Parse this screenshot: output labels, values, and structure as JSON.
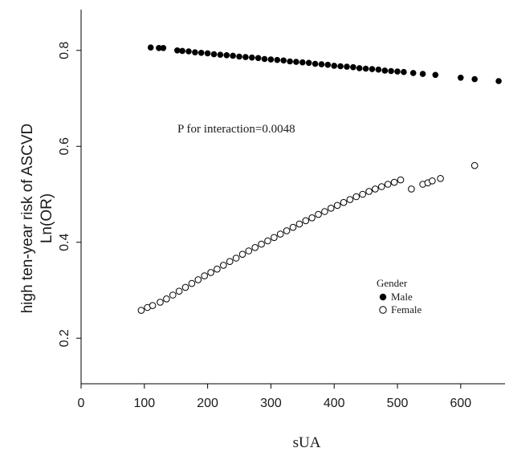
{
  "chart_data": {
    "type": "scatter",
    "xlabel": "sUA",
    "ylabel_lines": [
      "high ten-year risk of ASCVD",
      "Ln(OR)"
    ],
    "xlim": [
      0,
      670
    ],
    "ylim": [
      0.105,
      0.885
    ],
    "x_ticks": [
      0,
      100,
      200,
      300,
      400,
      500,
      600
    ],
    "y_ticks": [
      0.2,
      0.4,
      0.6,
      0.8
    ],
    "x_tick_labels": [
      "0",
      "100",
      "200",
      "300",
      "400",
      "500",
      "600"
    ],
    "y_tick_labels": [
      "0.2",
      "0.4",
      "0.6",
      "0.8"
    ],
    "annotation": "P for interaction=0.0048",
    "legend": {
      "title": "Gender",
      "position": "inside-right"
    },
    "series": [
      {
        "name": "Male",
        "marker": "filled-circle",
        "color": "#000000",
        "x": [
          110,
          123,
          130,
          152,
          160,
          170,
          180,
          190,
          200,
          210,
          220,
          230,
          240,
          250,
          260,
          270,
          280,
          290,
          300,
          310,
          320,
          330,
          340,
          350,
          360,
          370,
          380,
          390,
          400,
          410,
          420,
          430,
          440,
          450,
          460,
          470,
          480,
          490,
          500,
          510,
          525,
          540,
          560,
          600,
          622,
          660
        ],
        "y": [
          0.806,
          0.805,
          0.805,
          0.8,
          0.799,
          0.798,
          0.796,
          0.795,
          0.794,
          0.792,
          0.791,
          0.79,
          0.789,
          0.787,
          0.786,
          0.785,
          0.784,
          0.782,
          0.781,
          0.78,
          0.779,
          0.777,
          0.776,
          0.775,
          0.774,
          0.772,
          0.771,
          0.77,
          0.768,
          0.767,
          0.766,
          0.765,
          0.763,
          0.762,
          0.761,
          0.76,
          0.758,
          0.757,
          0.756,
          0.755,
          0.753,
          0.751,
          0.749,
          0.743,
          0.74,
          0.736
        ]
      },
      {
        "name": "Female",
        "marker": "open-circle",
        "color": "#000000",
        "x": [
          95,
          105,
          113,
          125,
          135,
          145,
          155,
          165,
          175,
          185,
          195,
          205,
          215,
          225,
          235,
          245,
          255,
          265,
          275,
          285,
          295,
          305,
          315,
          325,
          335,
          345,
          355,
          365,
          375,
          385,
          395,
          405,
          415,
          425,
          435,
          445,
          455,
          465,
          475,
          485,
          495,
          505,
          522,
          540,
          548,
          555,
          568,
          622
        ],
        "y": [
          0.258,
          0.264,
          0.268,
          0.275,
          0.282,
          0.29,
          0.298,
          0.306,
          0.314,
          0.322,
          0.33,
          0.337,
          0.344,
          0.352,
          0.36,
          0.367,
          0.375,
          0.382,
          0.389,
          0.396,
          0.403,
          0.41,
          0.417,
          0.424,
          0.431,
          0.438,
          0.445,
          0.451,
          0.458,
          0.464,
          0.471,
          0.477,
          0.483,
          0.489,
          0.495,
          0.5,
          0.506,
          0.511,
          0.516,
          0.521,
          0.525,
          0.53,
          0.511,
          0.521,
          0.524,
          0.528,
          0.533,
          0.56
        ]
      }
    ]
  }
}
